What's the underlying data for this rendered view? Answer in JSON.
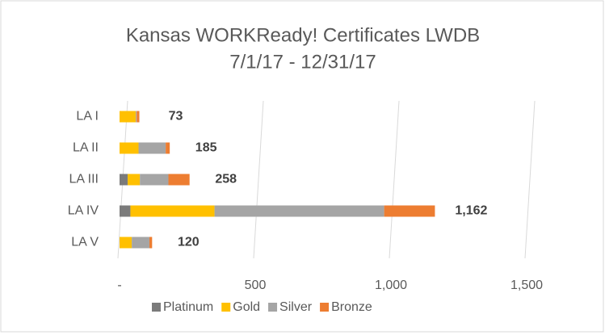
{
  "chart_data": {
    "type": "stacked-bar-horizontal",
    "title": "Kansas WORKReady! Certificates LWDB",
    "subtitle": "7/1/17 - 12/31/17",
    "categories": [
      "LA I",
      "LA II",
      "LA III",
      "LA IV",
      "LA V"
    ],
    "series": [
      {
        "name": "Platinum",
        "color": "#7b7b7b",
        "values": [
          0,
          0,
          30,
          40,
          0
        ]
      },
      {
        "name": "Gold",
        "color": "#ffc000",
        "values": [
          60,
          70,
          45,
          310,
          45
        ]
      },
      {
        "name": "Silver",
        "color": "#a5a5a5",
        "values": [
          3,
          100,
          105,
          625,
          65
        ]
      },
      {
        "name": "Bronze",
        "color": "#ed7d31",
        "values": [
          10,
          15,
          78,
          187,
          10
        ]
      }
    ],
    "totals": [
      73,
      185,
      258,
      1162,
      120
    ],
    "total_labels": [
      "73",
      "185",
      "258",
      "1,162",
      "120"
    ],
    "xlim": [
      0,
      1500
    ],
    "xticks": [
      {
        "value": 0,
        "label": "-"
      },
      500,
      {
        "value": 1000,
        "label": "1,000"
      },
      {
        "value": 1500,
        "label": "1,500"
      }
    ],
    "grid": true,
    "legend": "bottom"
  }
}
